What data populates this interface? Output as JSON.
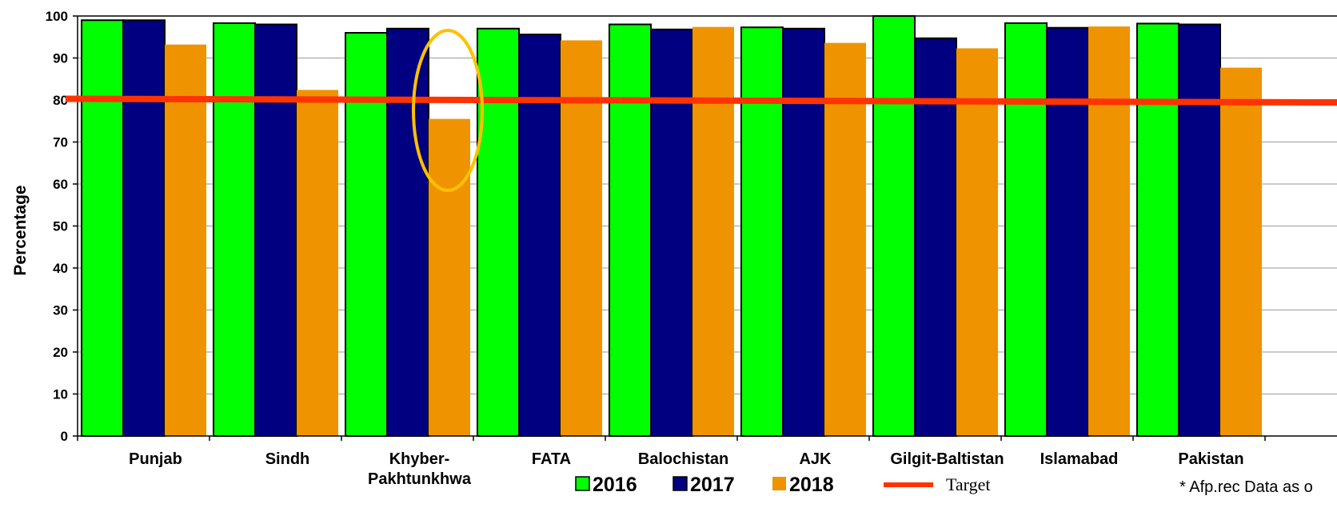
{
  "chart_data": {
    "type": "bar",
    "title": "",
    "xlabel": "",
    "ylabel": "Percentage",
    "ylim": [
      0,
      100
    ],
    "yticks": [
      0,
      10,
      20,
      30,
      40,
      50,
      60,
      70,
      80,
      90,
      100
    ],
    "categories": [
      "Punjab",
      "Sindh",
      "Khyber-\nPakhtunkhwa",
      "FATA",
      "Balochistan",
      "AJK",
      "Gilgit-Baltistan",
      "Islamabad",
      "Pakistan"
    ],
    "series": [
      {
        "name": "2016",
        "color": "#00ff00",
        "values": [
          99,
          98.3,
          96,
          97,
          98,
          97.3,
          100,
          98.3,
          98.2
        ]
      },
      {
        "name": "2017",
        "color": "#000080",
        "values": [
          99,
          98,
          97,
          95.6,
          96.8,
          97,
          94.7,
          97.2,
          98
        ]
      },
      {
        "name": "2018",
        "color": "#ef9300",
        "values": [
          93.2,
          82.4,
          75.5,
          94.2,
          97.4,
          93.6,
          92.3,
          97.5,
          87.7
        ]
      }
    ],
    "target": {
      "name": "Target",
      "value": 80,
      "color": "#ff3300"
    },
    "highlight": {
      "category_index": 2,
      "series_index": 2,
      "color": "#ffc000"
    },
    "legend_position": "bottom",
    "grid": true,
    "note": "* Afp.rec Data as o"
  }
}
